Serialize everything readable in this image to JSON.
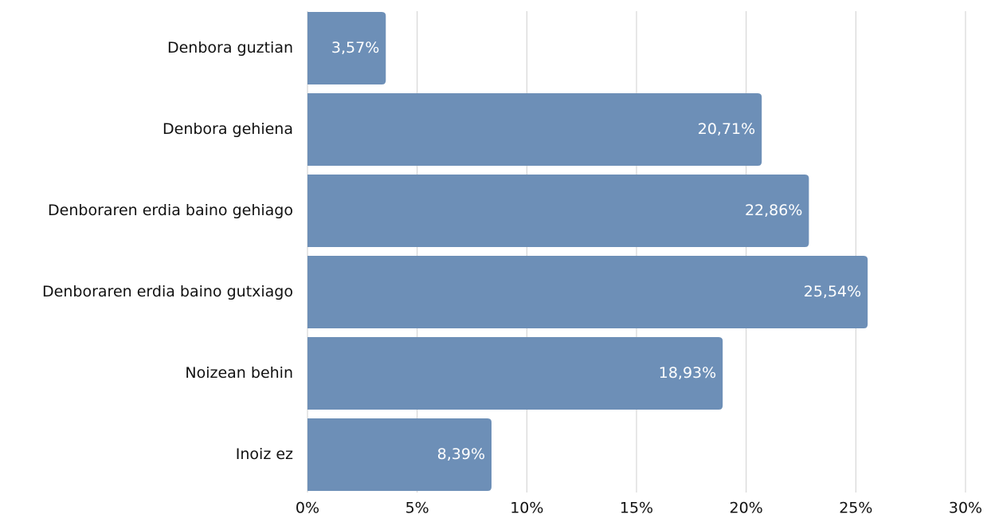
{
  "chart_data": {
    "type": "bar",
    "orientation": "horizontal",
    "categories": [
      "Denbora guztian",
      "Denbora gehiena",
      "Denboraren erdia baino gehiago",
      "Denboraren erdia baino gutxiago",
      "Noizean behin",
      "Inoiz ez"
    ],
    "values": [
      3.57,
      20.71,
      22.86,
      25.54,
      18.93,
      8.39
    ],
    "value_labels": [
      "3,57%",
      "20,71%",
      "22,86%",
      "25,54%",
      "18,93%",
      "8,39%"
    ],
    "color": "#6d8fb7",
    "xlim": [
      0,
      30
    ],
    "xticks": [
      {
        "value": 0,
        "label": "0%"
      },
      {
        "value": 5,
        "label": "5%"
      },
      {
        "value": 10,
        "label": "10%"
      },
      {
        "value": 15,
        "label": "15%"
      },
      {
        "value": 20,
        "label": "20%"
      },
      {
        "value": 25,
        "label": "25%"
      },
      {
        "value": 30,
        "label": "30%"
      }
    ],
    "grid": true
  }
}
